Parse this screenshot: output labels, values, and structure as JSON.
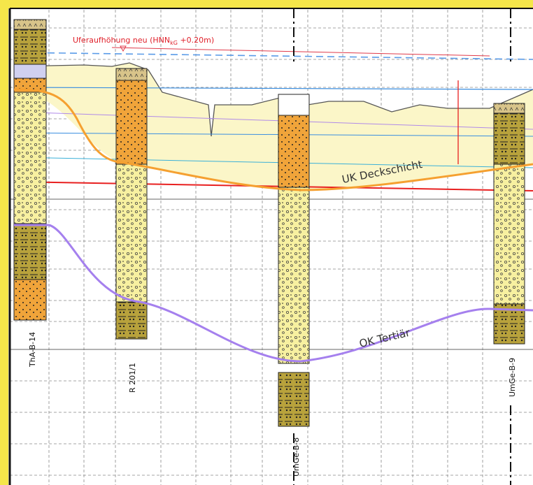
{
  "annotations": {
    "bank_raise": {
      "text": "Uferaufhöhung neu (HNN",
      "subscript": "kG",
      "suffix": " +0.20m)"
    },
    "uk_deckschicht": "UK Deckschicht",
    "ok_tertiaer": "OK Tertiär"
  },
  "boreholes": [
    {
      "label": "ThA-B-14"
    },
    {
      "label": "R 201/1"
    },
    {
      "label": "UmGe-B-8"
    },
    {
      "label": "UmGe-B-9"
    }
  ]
}
